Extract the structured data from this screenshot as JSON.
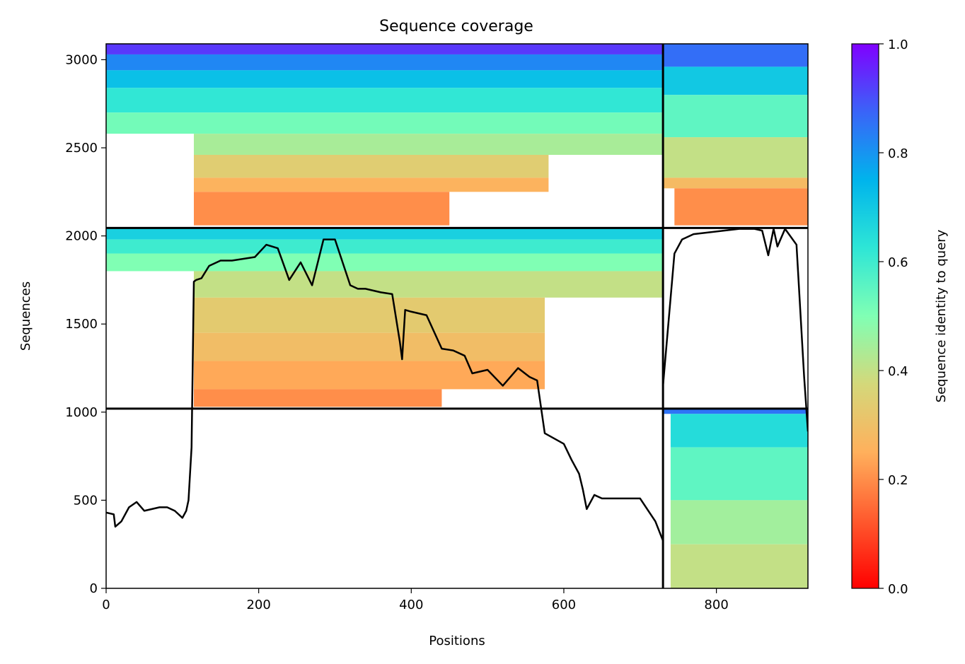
{
  "chart_data": {
    "type": "heatmap",
    "title": "Sequence coverage",
    "xlabel": "Positions",
    "ylabel": "Sequences",
    "xlim": [
      0,
      920
    ],
    "ylim": [
      0,
      3090
    ],
    "x_ticks": [
      0,
      200,
      400,
      600,
      800
    ],
    "y_ticks": [
      0,
      500,
      1000,
      1500,
      2000,
      2500,
      3000
    ],
    "colorbar": {
      "label": "Sequence identity to query",
      "range": [
        0.0,
        1.0
      ],
      "ticks": [
        0.0,
        0.2,
        0.4,
        0.6,
        0.8,
        1.0
      ],
      "colormap": "rainbow"
    },
    "chain_boundary_x": 730,
    "group_boundaries_y": [
      1020,
      2045
    ],
    "blocks": [
      {
        "x": [
          0,
          730
        ],
        "rows": [
          3030,
          3090
        ],
        "identity": 0.93
      },
      {
        "x": [
          0,
          730
        ],
        "rows": [
          2940,
          3030
        ],
        "identity": 0.82
      },
      {
        "x": [
          0,
          730
        ],
        "rows": [
          2840,
          2940
        ],
        "identity": 0.72
      },
      {
        "x": [
          0,
          730
        ],
        "rows": [
          2700,
          2840
        ],
        "identity": 0.62
      },
      {
        "x": [
          0,
          730
        ],
        "rows": [
          2580,
          2700
        ],
        "identity": 0.52
      },
      {
        "x": [
          115,
          730
        ],
        "rows": [
          2460,
          2580
        ],
        "identity": 0.44
      },
      {
        "x": [
          115,
          580
        ],
        "rows": [
          2330,
          2460
        ],
        "identity": 0.34
      },
      {
        "x": [
          115,
          580
        ],
        "rows": [
          2250,
          2330
        ],
        "identity": 0.26
      },
      {
        "x": [
          115,
          450
        ],
        "rows": [
          2060,
          2250
        ],
        "identity": 0.2
      },
      {
        "x": [
          730,
          920
        ],
        "rows": [
          2960,
          3090
        ],
        "identity": 0.86
      },
      {
        "x": [
          730,
          920
        ],
        "rows": [
          2800,
          2960
        ],
        "identity": 0.7
      },
      {
        "x": [
          730,
          920
        ],
        "rows": [
          2560,
          2800
        ],
        "identity": 0.55
      },
      {
        "x": [
          730,
          920
        ],
        "rows": [
          2330,
          2560
        ],
        "identity": 0.4
      },
      {
        "x": [
          730,
          920
        ],
        "rows": [
          2270,
          2330
        ],
        "identity": 0.28
      },
      {
        "x": [
          745,
          920
        ],
        "rows": [
          2060,
          2270
        ],
        "identity": 0.2
      },
      {
        "x": [
          0,
          730
        ],
        "rows": [
          1980,
          2045
        ],
        "identity": 0.68
      },
      {
        "x": [
          0,
          730
        ],
        "rows": [
          1900,
          1980
        ],
        "identity": 0.6
      },
      {
        "x": [
          0,
          730
        ],
        "rows": [
          1800,
          1900
        ],
        "identity": 0.5
      },
      {
        "x": [
          115,
          730
        ],
        "rows": [
          1650,
          1800
        ],
        "identity": 0.4
      },
      {
        "x": [
          115,
          575
        ],
        "rows": [
          1450,
          1650
        ],
        "identity": 0.33
      },
      {
        "x": [
          115,
          575
        ],
        "rows": [
          1290,
          1450
        ],
        "identity": 0.29
      },
      {
        "x": [
          115,
          575
        ],
        "rows": [
          1130,
          1290
        ],
        "identity": 0.24
      },
      {
        "x": [
          115,
          440
        ],
        "rows": [
          1030,
          1130
        ],
        "identity": 0.2
      },
      {
        "x": [
          730,
          920
        ],
        "rows": [
          990,
          1020
        ],
        "identity": 0.85
      },
      {
        "x": [
          740,
          920
        ],
        "rows": [
          800,
          990
        ],
        "identity": 0.65
      },
      {
        "x": [
          740,
          920
        ],
        "rows": [
          500,
          800
        ],
        "identity": 0.55
      },
      {
        "x": [
          740,
          920
        ],
        "rows": [
          250,
          500
        ],
        "identity": 0.45
      },
      {
        "x": [
          740,
          920
        ],
        "rows": [
          0,
          250
        ],
        "identity": 0.4
      }
    ],
    "coverage": {
      "x": [
        0,
        10,
        12,
        20,
        30,
        40,
        50,
        60,
        70,
        80,
        90,
        100,
        105,
        108,
        112,
        115,
        118,
        125,
        135,
        150,
        165,
        180,
        195,
        210,
        225,
        240,
        255,
        270,
        285,
        300,
        310,
        320,
        330,
        340,
        350,
        360,
        375,
        385,
        388,
        392,
        400,
        420,
        440,
        455,
        470,
        480,
        500,
        520,
        540,
        555,
        565,
        575,
        600,
        610,
        620,
        625,
        630,
        640,
        650,
        700,
        720,
        730
      ],
      "y": [
        430,
        420,
        350,
        380,
        460,
        490,
        440,
        450,
        460,
        460,
        440,
        400,
        440,
        500,
        800,
        1740,
        1750,
        1760,
        1830,
        1860,
        1860,
        1870,
        1880,
        1950,
        1930,
        1750,
        1850,
        1720,
        1980,
        1980,
        1850,
        1720,
        1700,
        1700,
        1690,
        1680,
        1670,
        1400,
        1300,
        1580,
        1570,
        1550,
        1360,
        1350,
        1320,
        1220,
        1240,
        1150,
        1250,
        1200,
        1180,
        880,
        820,
        730,
        650,
        560,
        450,
        530,
        510,
        510,
        380,
        270
      ]
    },
    "coverage_right": {
      "x": [
        730,
        735,
        740,
        745,
        755,
        770,
        790,
        810,
        830,
        850,
        860,
        868,
        875,
        880,
        890,
        905,
        915,
        920
      ],
      "y": [
        1150,
        1400,
        1650,
        1900,
        1980,
        2010,
        2020,
        2030,
        2040,
        2040,
        2030,
        1890,
        2040,
        1940,
        2040,
        1950,
        1200,
        890
      ]
    }
  }
}
